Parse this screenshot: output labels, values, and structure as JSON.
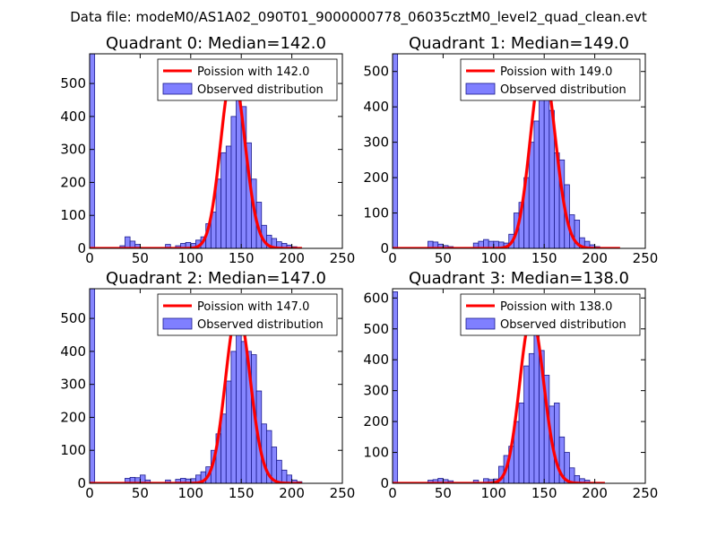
{
  "figure_title": "Data file: modeM0/AS1A02_090T01_9000000778_06035cztM0_level2_quad_clean.evt",
  "colors": {
    "bar_fill": "#7f7fff",
    "bar_edge": "#1a1a8c",
    "poisson_line": "#ff0000"
  },
  "chart_data": [
    {
      "type": "bar",
      "title": "Quadrant 0: Median=142.0",
      "median": 142.0,
      "xlim": [
        0,
        250
      ],
      "ylim": [
        0,
        590
      ],
      "xticks": [
        0,
        50,
        100,
        150,
        200,
        250
      ],
      "yticks": [
        0,
        100,
        200,
        300,
        400,
        500
      ],
      "legend": [
        "Poission with 142.0",
        "Observed distribution"
      ],
      "legend_position": "upper-right",
      "bin_width": 5,
      "bins": [
        [
          0,
          590
        ],
        [
          30,
          8
        ],
        [
          35,
          35
        ],
        [
          40,
          22
        ],
        [
          45,
          12
        ],
        [
          55,
          3
        ],
        [
          75,
          12
        ],
        [
          85,
          8
        ],
        [
          90,
          15
        ],
        [
          95,
          18
        ],
        [
          100,
          15
        ],
        [
          105,
          25
        ],
        [
          110,
          35
        ],
        [
          115,
          75
        ],
        [
          120,
          110
        ],
        [
          125,
          210
        ],
        [
          130,
          290
        ],
        [
          135,
          310
        ],
        [
          140,
          400
        ],
        [
          145,
          450
        ],
        [
          150,
          430
        ],
        [
          155,
          320
        ],
        [
          160,
          210
        ],
        [
          165,
          140
        ],
        [
          170,
          70
        ],
        [
          175,
          40
        ],
        [
          180,
          30
        ],
        [
          185,
          20
        ],
        [
          190,
          15
        ],
        [
          195,
          10
        ],
        [
          200,
          5
        ]
      ],
      "poisson_fit": {
        "mean": 142.0,
        "scale": 16000,
        "x_range": [
          0,
          210
        ]
      }
    },
    {
      "type": "bar",
      "title": "Quadrant 1: Median=149.0",
      "median": 149.0,
      "xlim": [
        0,
        250
      ],
      "ylim": [
        0,
        550
      ],
      "xticks": [
        0,
        50,
        100,
        150,
        200,
        250
      ],
      "yticks": [
        0,
        100,
        200,
        300,
        400,
        500
      ],
      "legend": [
        "Poission with 149.0",
        "Observed distribution"
      ],
      "legend_position": "upper-right",
      "bin_width": 5,
      "bins": [
        [
          0,
          550
        ],
        [
          35,
          20
        ],
        [
          40,
          18
        ],
        [
          45,
          12
        ],
        [
          50,
          8
        ],
        [
          55,
          5
        ],
        [
          80,
          15
        ],
        [
          85,
          20
        ],
        [
          90,
          25
        ],
        [
          95,
          20
        ],
        [
          100,
          20
        ],
        [
          105,
          18
        ],
        [
          110,
          15
        ],
        [
          115,
          40
        ],
        [
          120,
          100
        ],
        [
          125,
          130
        ],
        [
          130,
          200
        ],
        [
          135,
          300
        ],
        [
          140,
          360
        ],
        [
          145,
          420
        ],
        [
          150,
          510
        ],
        [
          155,
          390
        ],
        [
          160,
          270
        ],
        [
          165,
          250
        ],
        [
          170,
          180
        ],
        [
          175,
          95
        ],
        [
          180,
          80
        ],
        [
          185,
          30
        ],
        [
          190,
          20
        ],
        [
          195,
          10
        ],
        [
          200,
          5
        ]
      ],
      "poisson_fit": {
        "mean": 149.0,
        "scale": 16000,
        "x_range": [
          0,
          225
        ]
      }
    },
    {
      "type": "bar",
      "title": "Quadrant 2: Median=147.0",
      "median": 147.0,
      "xlim": [
        0,
        250
      ],
      "ylim": [
        0,
        590
      ],
      "xticks": [
        0,
        50,
        100,
        150,
        200,
        250
      ],
      "yticks": [
        0,
        100,
        200,
        300,
        400,
        500
      ],
      "legend": [
        "Poission with 147.0",
        "Observed distribution"
      ],
      "legend_position": "upper-right",
      "bin_width": 5,
      "bins": [
        [
          0,
          590
        ],
        [
          35,
          15
        ],
        [
          40,
          18
        ],
        [
          45,
          17
        ],
        [
          50,
          25
        ],
        [
          55,
          10
        ],
        [
          75,
          10
        ],
        [
          85,
          12
        ],
        [
          90,
          15
        ],
        [
          95,
          13
        ],
        [
          100,
          14
        ],
        [
          105,
          25
        ],
        [
          110,
          35
        ],
        [
          115,
          50
        ],
        [
          120,
          100
        ],
        [
          125,
          150
        ],
        [
          130,
          210
        ],
        [
          135,
          310
        ],
        [
          140,
          400
        ],
        [
          145,
          510
        ],
        [
          150,
          430
        ],
        [
          155,
          400
        ],
        [
          160,
          390
        ],
        [
          165,
          280
        ],
        [
          170,
          180
        ],
        [
          175,
          160
        ],
        [
          180,
          110
        ],
        [
          185,
          70
        ],
        [
          190,
          40
        ],
        [
          195,
          25
        ],
        [
          200,
          10
        ],
        [
          205,
          5
        ]
      ],
      "poisson_fit": {
        "mean": 147.0,
        "scale": 16000,
        "x_range": [
          0,
          210
        ]
      }
    },
    {
      "type": "bar",
      "title": "Quadrant 3: Median=138.0",
      "median": 138.0,
      "xlim": [
        0,
        250
      ],
      "ylim": [
        0,
        630
      ],
      "xticks": [
        0,
        50,
        100,
        150,
        200,
        250
      ],
      "yticks": [
        0,
        100,
        200,
        300,
        400,
        500,
        600
      ],
      "legend": [
        "Poission with 138.0",
        "Observed distribution"
      ],
      "legend_position": "upper-right",
      "bin_width": 5,
      "bins": [
        [
          0,
          620
        ],
        [
          35,
          10
        ],
        [
          40,
          12
        ],
        [
          45,
          16
        ],
        [
          50,
          12
        ],
        [
          55,
          8
        ],
        [
          80,
          10
        ],
        [
          90,
          15
        ],
        [
          95,
          12
        ],
        [
          100,
          14
        ],
        [
          105,
          55
        ],
        [
          110,
          90
        ],
        [
          115,
          120
        ],
        [
          120,
          200
        ],
        [
          125,
          260
        ],
        [
          130,
          380
        ],
        [
          135,
          420
        ],
        [
          140,
          550
        ],
        [
          145,
          430
        ],
        [
          150,
          350
        ],
        [
          155,
          250
        ],
        [
          160,
          260
        ],
        [
          165,
          150
        ],
        [
          170,
          100
        ],
        [
          175,
          50
        ],
        [
          180,
          25
        ],
        [
          185,
          15
        ],
        [
          190,
          10
        ]
      ],
      "poisson_fit": {
        "mean": 138.0,
        "scale": 16000,
        "x_range": [
          0,
          210
        ]
      }
    }
  ]
}
